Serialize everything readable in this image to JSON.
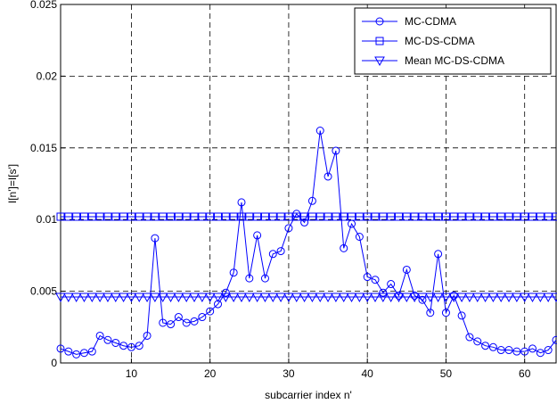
{
  "chart_data": {
    "type": "line",
    "x": [
      1,
      2,
      3,
      4,
      5,
      6,
      7,
      8,
      9,
      10,
      11,
      12,
      13,
      14,
      15,
      16,
      17,
      18,
      19,
      20,
      21,
      22,
      23,
      24,
      25,
      26,
      27,
      28,
      29,
      30,
      31,
      32,
      33,
      34,
      35,
      36,
      37,
      38,
      39,
      40,
      41,
      42,
      43,
      44,
      45,
      46,
      47,
      48,
      49,
      50,
      51,
      52,
      53,
      54,
      55,
      56,
      57,
      58,
      59,
      60,
      61,
      62,
      63,
      64
    ],
    "series": [
      {
        "name": "MC-CDMA",
        "color": "#0000ff",
        "marker": "circle",
        "values": [
          0.001,
          0.0008,
          0.0006,
          0.0007,
          0.0008,
          0.0019,
          0.0016,
          0.0014,
          0.0012,
          0.0011,
          0.0012,
          0.0019,
          0.0087,
          0.0028,
          0.0027,
          0.0032,
          0.0028,
          0.0029,
          0.0032,
          0.0036,
          0.0041,
          0.0049,
          0.0063,
          0.0112,
          0.0059,
          0.0089,
          0.0059,
          0.0076,
          0.0078,
          0.0094,
          0.0104,
          0.0098,
          0.0113,
          0.0162,
          0.013,
          0.0148,
          0.008,
          0.0097,
          0.0088,
          0.006,
          0.0058,
          0.0049,
          0.0055,
          0.0047,
          0.0065,
          0.0047,
          0.0044,
          0.0035,
          0.0076,
          0.0035,
          0.0047,
          0.0033,
          0.0018,
          0.0015,
          0.0012,
          0.0011,
          0.0009,
          0.0009,
          0.0008,
          0.0008,
          0.001,
          0.0007,
          0.0009,
          0.0016
        ]
      },
      {
        "name": "MC-DS-CDMA",
        "color": "#0000ff",
        "marker": "square",
        "values": [
          0.0102,
          0.0102,
          0.0102,
          0.0102,
          0.0102,
          0.0102,
          0.0102,
          0.0102,
          0.0102,
          0.0102,
          0.0102,
          0.0102,
          0.0102,
          0.0102,
          0.0102,
          0.0102,
          0.0102,
          0.0102,
          0.0102,
          0.0102,
          0.0102,
          0.0102,
          0.0102,
          0.0102,
          0.0102,
          0.0102,
          0.0102,
          0.0102,
          0.0102,
          0.0102,
          0.0102,
          0.0102,
          0.0102,
          0.0102,
          0.0102,
          0.0102,
          0.0102,
          0.0102,
          0.0102,
          0.0102,
          0.0102,
          0.0102,
          0.0102,
          0.0102,
          0.0102,
          0.0102,
          0.0102,
          0.0102,
          0.0102,
          0.0102,
          0.0102,
          0.0102,
          0.0102,
          0.0102,
          0.0102,
          0.0102,
          0.0102,
          0.0102,
          0.0102,
          0.0102,
          0.0102,
          0.0102,
          0.0102,
          0.0102
        ]
      },
      {
        "name": "Mean MC-DS-CDMA",
        "color": "#0000ff",
        "marker": "triangle-down",
        "values": [
          0.0046,
          0.0046,
          0.0046,
          0.0046,
          0.0046,
          0.0046,
          0.0046,
          0.0046,
          0.0046,
          0.0046,
          0.0046,
          0.0046,
          0.0046,
          0.0046,
          0.0046,
          0.0046,
          0.0046,
          0.0046,
          0.0046,
          0.0046,
          0.0046,
          0.0046,
          0.0046,
          0.0046,
          0.0046,
          0.0046,
          0.0046,
          0.0046,
          0.0046,
          0.0046,
          0.0046,
          0.0046,
          0.0046,
          0.0046,
          0.0046,
          0.0046,
          0.0046,
          0.0046,
          0.0046,
          0.0046,
          0.0046,
          0.0046,
          0.0046,
          0.0046,
          0.0046,
          0.0046,
          0.0046,
          0.0046,
          0.0046,
          0.0046,
          0.0046,
          0.0046,
          0.0046,
          0.0046,
          0.0046,
          0.0046,
          0.0046,
          0.0046,
          0.0046,
          0.0046,
          0.0046,
          0.0046,
          0.0046,
          0.0046
        ]
      }
    ],
    "xlabel": "subcarrier index n'",
    "ylabel": "I[n']=I[s']",
    "xlim": [
      1,
      64
    ],
    "xticks": [
      10,
      20,
      30,
      40,
      50,
      60
    ],
    "ylim": [
      0,
      0.025
    ],
    "yticks": [
      0,
      0.005,
      0.01,
      0.015,
      0.02,
      0.025
    ],
    "grid": true,
    "legend": "upper right"
  }
}
